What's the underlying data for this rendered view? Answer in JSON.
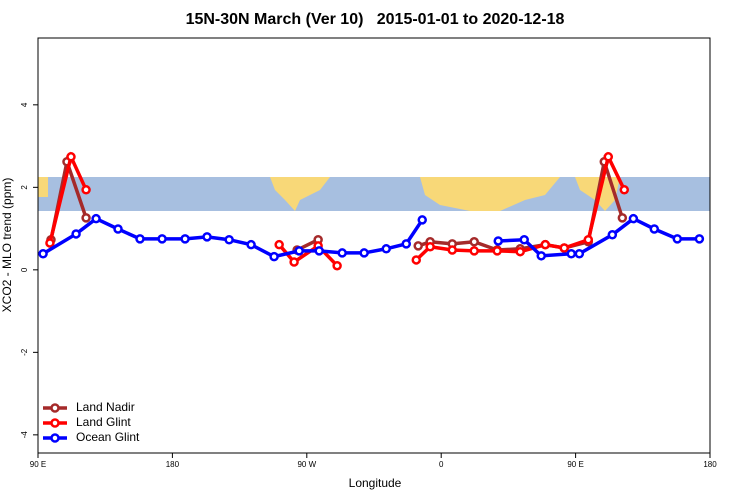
{
  "chart_data": {
    "type": "line",
    "title": "15N-30N March (Ver 10)   2015-01-01 to 2020-12-18",
    "x_label": "Longitude",
    "y_label": "XCO2 - MLO trend (ppm)",
    "xlim": [
      90,
      540
    ],
    "ylim": [
      -4.44,
      5.62
    ],
    "xticks": [
      {
        "value": 90,
        "label": "90 E"
      },
      180,
      {
        "value": 270,
        "label": "90 W"
      },
      {
        "value": 360,
        "label": "0"
      },
      {
        "value": 450,
        "label": "90 E"
      },
      180
    ],
    "yticks": [
      -4,
      -2,
      0,
      2,
      4
    ],
    "legend": "bottom-left",
    "series": [
      {
        "name": "Land Nadir",
        "color": "#a52a2a",
        "x": [
          98.7,
          109.4,
          122.2,
          null,
          263.5,
          277.6,
          null,
          344.6,
          352.6,
          367.4,
          382.1,
          397.5,
          412.9,
          429.7,
          442.4,
          458.5,
          469.2,
          481.3
        ],
        "values": [
          0.73,
          2.62,
          1.26,
          null,
          0.48,
          0.73,
          null,
          0.58,
          0.68,
          0.63,
          0.68,
          0.48,
          0.51,
          0.61,
          0.53,
          0.68,
          2.62,
          1.26
        ]
      },
      {
        "name": "Land Glint",
        "color": "#ff0000",
        "x": [
          98,
          112.1,
          122.2,
          null,
          251.5,
          261.5,
          277.6,
          290.3,
          null,
          343.3,
          352.6,
          367.4,
          382.1,
          397.5,
          412.9,
          429.7,
          442.4,
          458.5,
          471.9,
          482.6
        ],
        "values": [
          0.65,
          2.74,
          1.94,
          null,
          0.61,
          0.19,
          0.58,
          0.1,
          null,
          0.24,
          0.56,
          0.48,
          0.46,
          0.46,
          0.44,
          0.61,
          0.53,
          0.73,
          2.74,
          1.94
        ]
      },
      {
        "name": "Ocean Glint",
        "color": "#0000ff",
        "x": [
          93.4,
          115.5,
          128.9,
          143.6,
          158.3,
          173.1,
          188.5,
          203.2,
          218,
          232.7,
          248.1,
          264.9,
          278.3,
          293.7,
          308.4,
          323.2,
          336.6,
          347.3,
          null,
          398.2,
          415.6,
          427,
          447.1,
          452.5,
          474.6,
          488.7,
          502.7,
          518.1,
          532.9
        ],
        "values": [
          0.39,
          0.87,
          1.24,
          0.99,
          0.75,
          0.75,
          0.75,
          0.8,
          0.73,
          0.61,
          0.32,
          0.46,
          0.46,
          0.41,
          0.41,
          0.51,
          0.63,
          1.21,
          null,
          0.7,
          0.73,
          0.34,
          0.39,
          0.39,
          0.85,
          1.24,
          0.99,
          0.75,
          0.75
        ]
      }
    ]
  }
}
